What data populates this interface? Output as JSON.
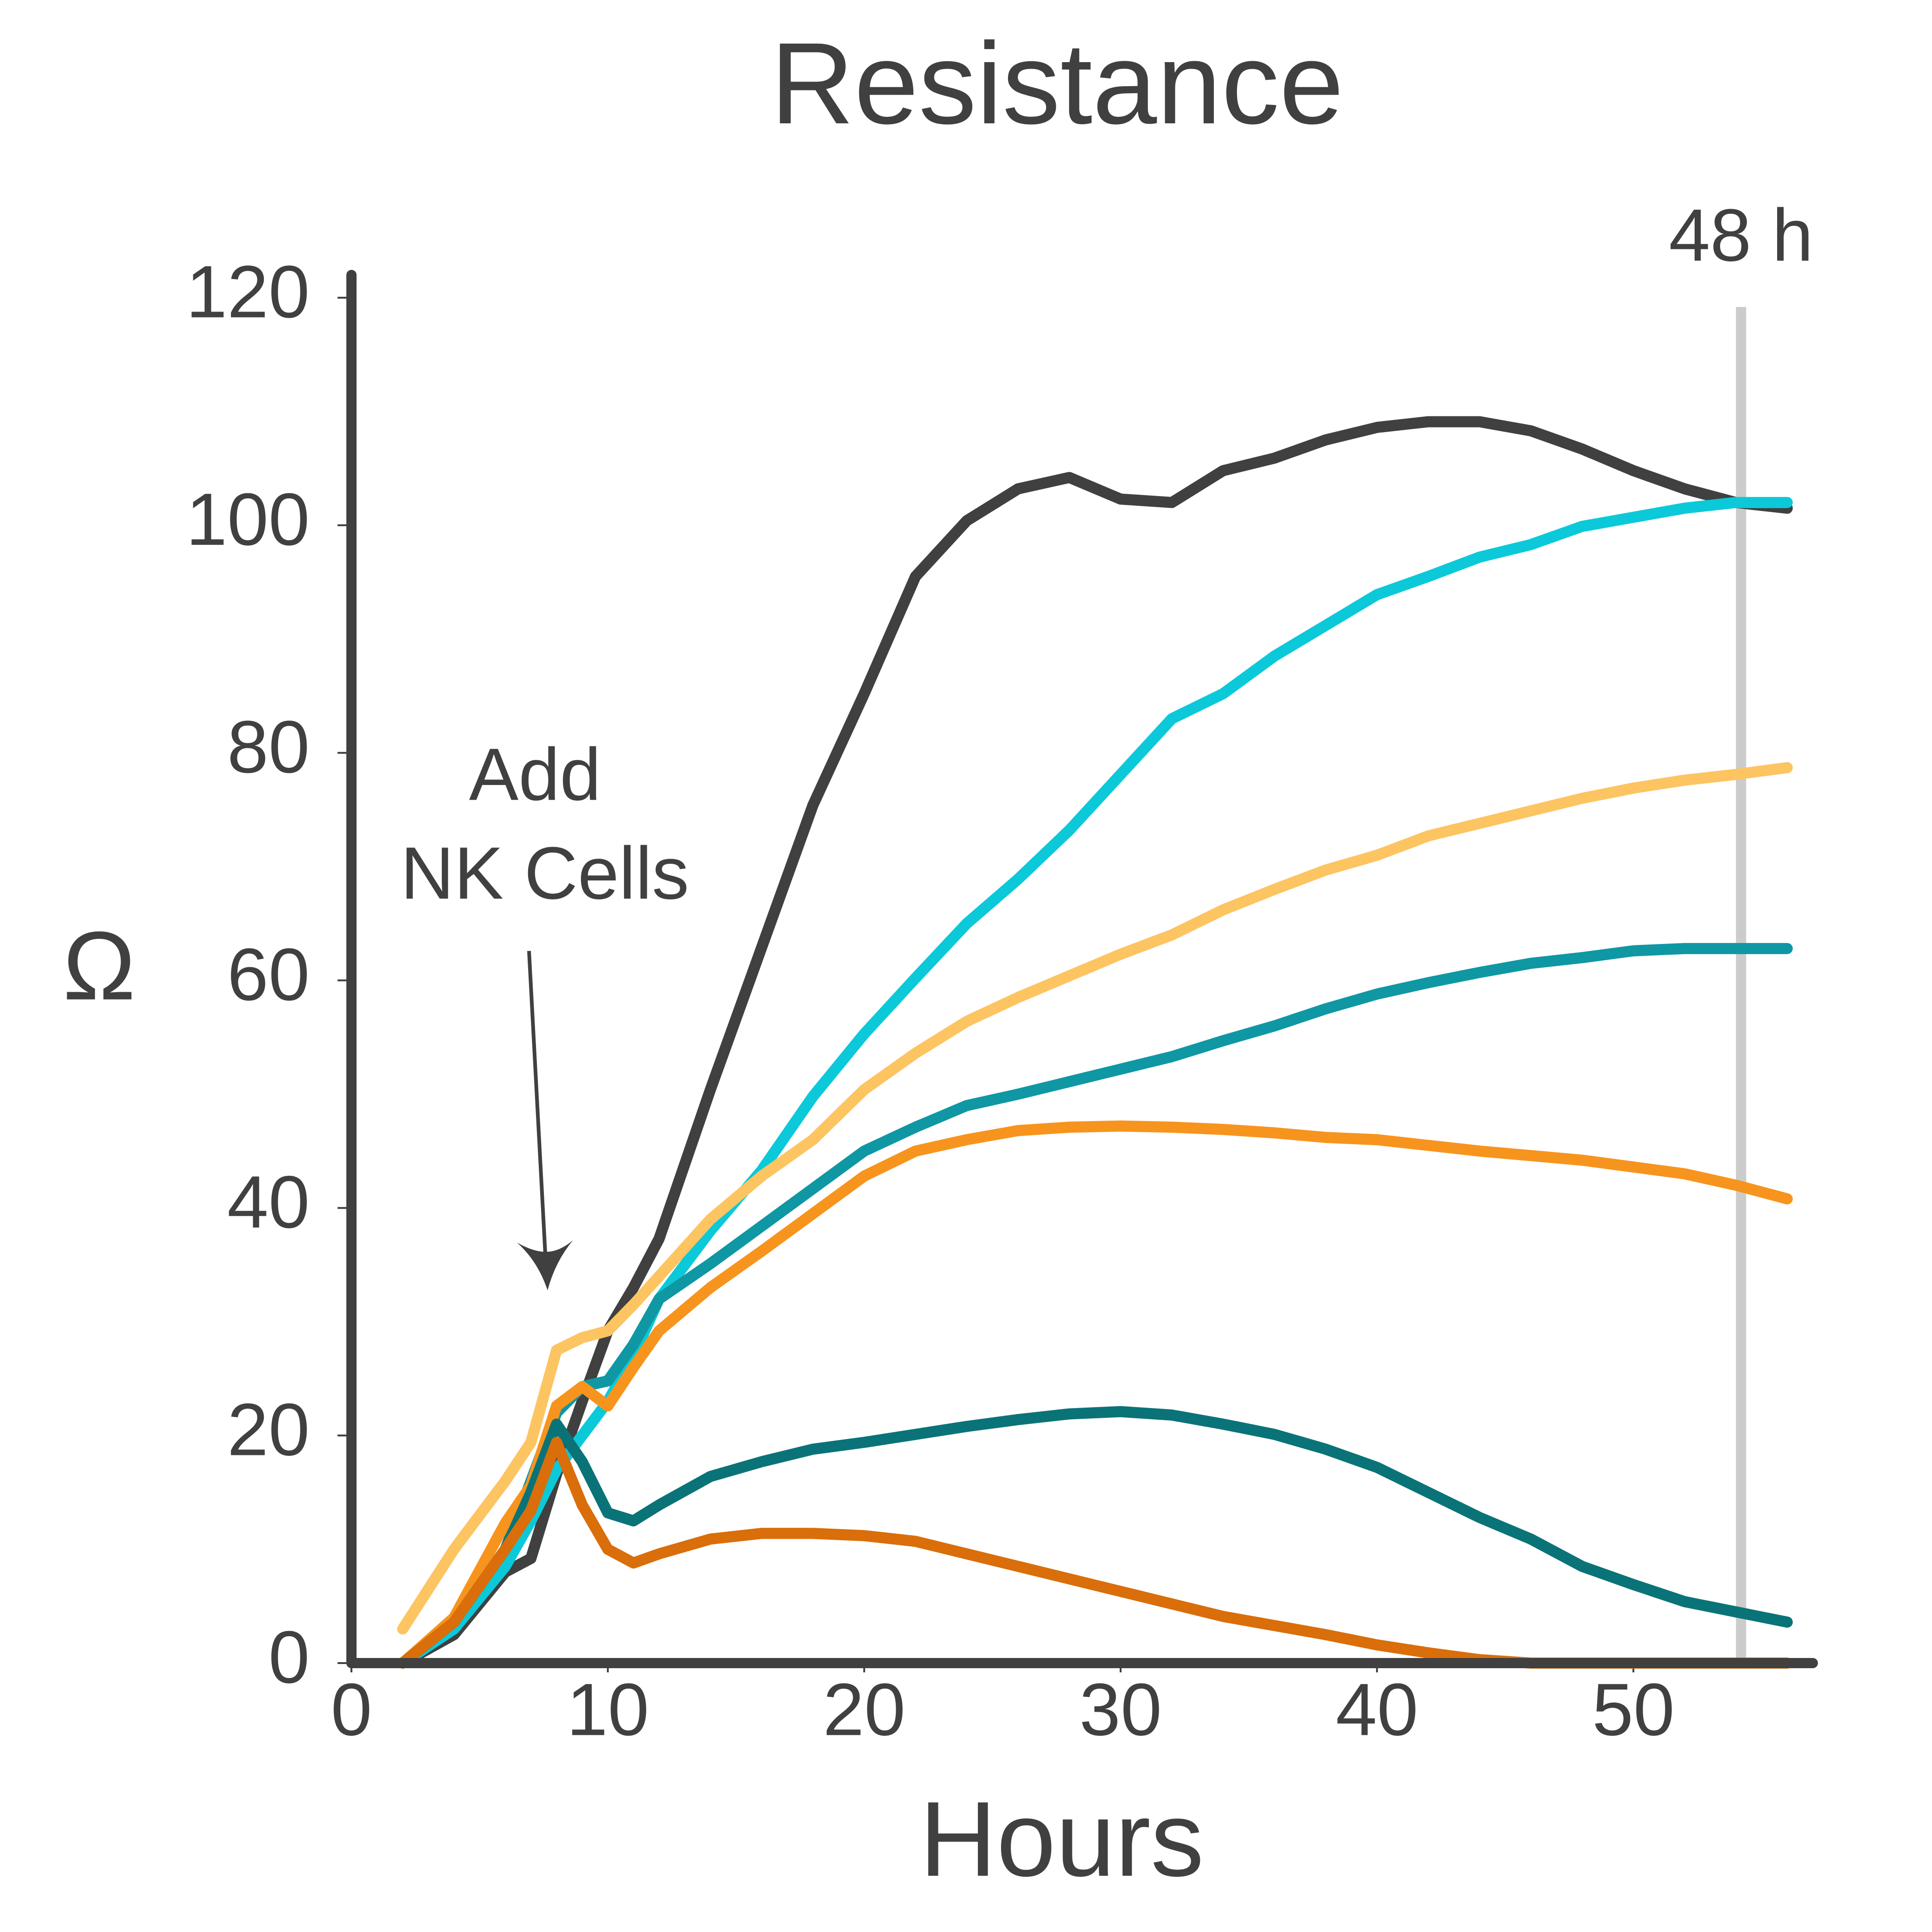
{
  "chart_data": {
    "type": "line",
    "title": "Resistance",
    "x_label": "Hours",
    "y_label": "Ω",
    "x": [
      2,
      4,
      6,
      7,
      8,
      9,
      10,
      11,
      12,
      14,
      16,
      18,
      20,
      22,
      24,
      26,
      28,
      30,
      32,
      34,
      36,
      38,
      40,
      42,
      44,
      46,
      48,
      50,
      52,
      54,
      56
    ],
    "series": [
      {
        "color": "#404040",
        "values": [
          0,
          2.5,
          8,
          9.2,
          16.6,
          23,
          29.2,
          33,
          37.3,
          50.4,
          62.9,
          75.4,
          85.2,
          95.5,
          100.4,
          103.2,
          104.2,
          102.3,
          102,
          104.8,
          105.9,
          107.5,
          108.6,
          109.1,
          109.1,
          108.3,
          106.7,
          104.8,
          103.2,
          102,
          101.5
        ]
      },
      {
        "color": "#0bc9d9",
        "values": [
          0,
          3,
          8.5,
          12.5,
          17,
          20,
          23,
          27,
          32,
          38,
          43.3,
          49.8,
          55.3,
          60.2,
          65,
          68.9,
          73.2,
          78.1,
          83,
          85.2,
          88.5,
          91.2,
          93.9,
          95.5,
          97.2,
          98.3,
          99.9,
          100.7,
          101.5,
          102,
          102
        ]
      },
      {
        "color": "#fdc462",
        "values": [
          3,
          10,
          16,
          19.4,
          27.5,
          28.6,
          29.2,
          31.5,
          34,
          39,
          42.8,
          46,
          50.4,
          53.6,
          56.4,
          58.5,
          60.4,
          62.3,
          64,
          66.2,
          68,
          69.7,
          71,
          72.7,
          73.8,
          74.9,
          76,
          76.9,
          77.6,
          78.1,
          78.7
        ]
      },
      {
        "color": "#0f97a4",
        "values": [
          0,
          3.6,
          10,
          16,
          22,
          24.3,
          24.8,
          28,
          32,
          35.1,
          38.4,
          41.7,
          45,
          47.1,
          49,
          50,
          51.1,
          52.2,
          53.3,
          54.7,
          56,
          57.5,
          58.8,
          59.8,
          60.7,
          61.5,
          62,
          62.6,
          62.8,
          62.8,
          62.8
        ]
      },
      {
        "color": "#f7941d",
        "values": [
          0,
          4,
          12.3,
          15.6,
          22.6,
          24.3,
          22.6,
          26,
          29.2,
          33,
          36.2,
          39.5,
          42.8,
          45,
          46,
          46.8,
          47.1,
          47.2,
          47.1,
          46.9,
          46.6,
          46.2,
          46,
          45.5,
          45,
          44.6,
          44.2,
          43.6,
          43,
          42,
          40.8
        ]
      },
      {
        "color": "#0a7378",
        "values": [
          0,
          3.6,
          10,
          15,
          21,
          17.7,
          13.2,
          12.5,
          13.9,
          16.4,
          17.7,
          18.8,
          19.4,
          20.1,
          20.8,
          21.4,
          21.9,
          22.1,
          21.8,
          21,
          20.1,
          18.8,
          17.2,
          15,
          12.8,
          10.9,
          8.5,
          6.9,
          5.4,
          4.5,
          3.6
        ]
      },
      {
        "color": "#d96e0a",
        "values": [
          0,
          3.6,
          10,
          13.4,
          19.4,
          13.9,
          10,
          8.8,
          9.6,
          10.9,
          11.4,
          11.4,
          11.2,
          10.7,
          9.6,
          8.5,
          7.4,
          6.3,
          5.2,
          4.1,
          3.3,
          2.5,
          1.6,
          0.9,
          0.3,
          0,
          0,
          0,
          0,
          0,
          0
        ]
      }
    ],
    "xlim": [
      0,
      57
    ],
    "ylim": [
      0,
      122
    ],
    "xticks": [
      0,
      10,
      20,
      30,
      40,
      50
    ],
    "yticks": [
      0,
      20,
      40,
      60,
      80,
      100,
      120
    ],
    "annotations": [
      {
        "lines": [
          "Add",
          "NK Cells"
        ]
      },
      {
        "text": "48 h",
        "x": 54.2,
        "color": "#cccccc"
      }
    ]
  }
}
